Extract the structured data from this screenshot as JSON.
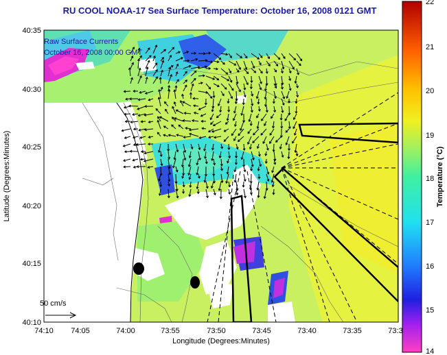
{
  "title": "RU COOL  NOAA-17  Sea Surface Temperature:  October 16, 2008 0121 GMT",
  "annotation_line1": "Raw Surface Currents",
  "annotation_line2": "October 16, 2008 00:00 GMT",
  "xlabel": "Longitude (Degrees:Minutes)",
  "ylabel": "Latitude (Degrees:Minutes)",
  "scale_label": "50 cm/s",
  "x_ticks": [
    "74:10",
    "74:05",
    "74:00",
    "73:55",
    "73:50",
    "73:45",
    "73:40",
    "73:35",
    "73:3"
  ],
  "y_ticks": [
    "40:35",
    "40:30",
    "40:25",
    "40:20",
    "40:15",
    "40:10"
  ],
  "colorbar": {
    "label": "Temperature (°C)",
    "min": 14,
    "max": 22,
    "ticks": [
      "22",
      "21",
      "20",
      "19",
      "18",
      "17",
      "16",
      "15",
      "14"
    ]
  },
  "colors": {
    "title": "#1a1aa8",
    "land": "#ffffff",
    "sst_base": "#c8f060"
  }
}
